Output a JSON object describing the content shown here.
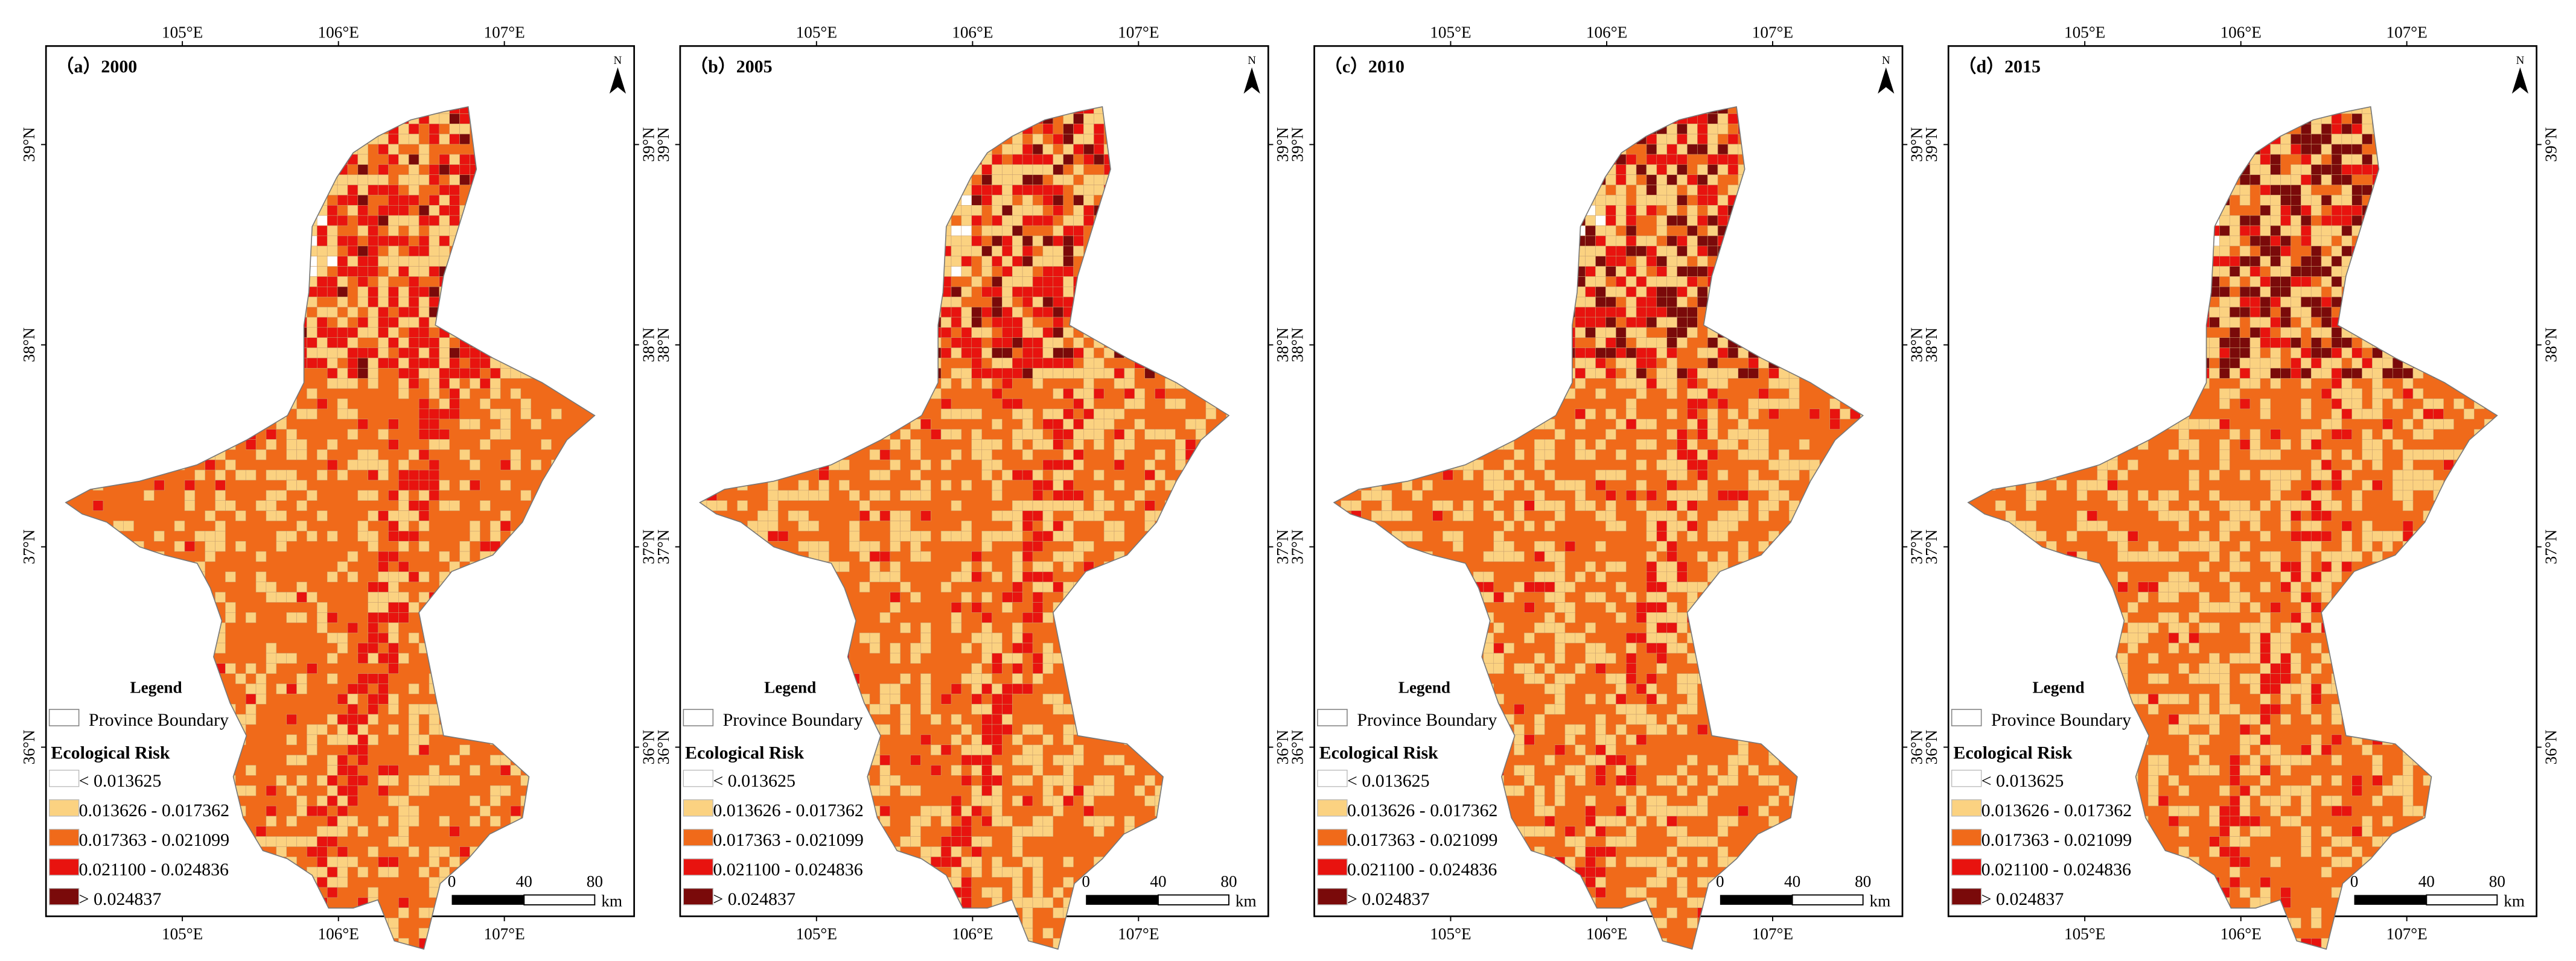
{
  "panels": [
    {
      "label": "（a）2000"
    },
    {
      "label": "（b）2005"
    },
    {
      "label": "（c）2010"
    },
    {
      "label": "（d）2015"
    }
  ],
  "lon_ticks": [
    "105°E",
    "106°E",
    "107°E"
  ],
  "lat_ticks": [
    "39°N",
    "38°N",
    "37°N",
    "36°N"
  ],
  "north": "N",
  "legend": {
    "title": "Legend",
    "boundary": "Province Boundary",
    "risk_title": "Ecological Risk",
    "classes": [
      "< 0.013625",
      "0.013626 - 0.017362",
      "0.017363 - 0.021099",
      "0.021100 - 0.024836",
      "> 0.024837"
    ]
  },
  "scale": {
    "labels": [
      "0",
      "40",
      "80"
    ],
    "unit": "km"
  }
}
